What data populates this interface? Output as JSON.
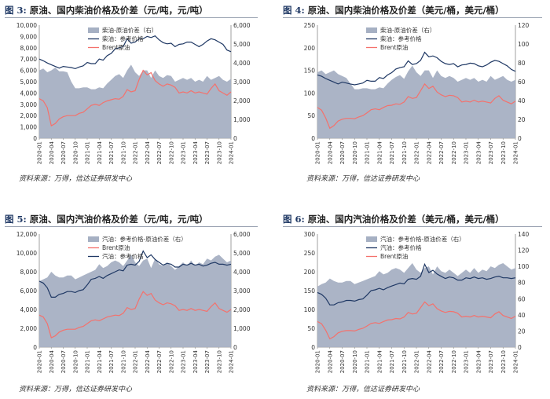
{
  "charts": [
    {
      "title_prefix": "图 3:",
      "title": "原油、国内柴油价格及价差（元/吨，元/吨）",
      "source": "资料来源：万得，信达证券研发中心",
      "chart_data": {
        "type": "area",
        "left_ticks": [
          "0",
          "1,000",
          "2,000",
          "3,000",
          "4,000",
          "5,000",
          "6,000",
          "7,000",
          "8,000",
          "9,000",
          "10,000"
        ],
        "left_max": 10000,
        "right_ticks": [
          "0",
          "1,000",
          "2,000",
          "3,000",
          "4,000",
          "5,000",
          "6,000"
        ],
        "right_max": 6000,
        "x_ticks": [
          "2020-01",
          "2020-04",
          "2020-07",
          "2020-10",
          "2021-01",
          "2021-04",
          "2021-07",
          "2021-10",
          "2022-01",
          "2022-04",
          "2022-07",
          "2022-10",
          "2023-01",
          "2023-04",
          "2023-07",
          "2023-10",
          "2024-01"
        ],
        "legend": [
          "柴油-原油价差（右）",
          "柴油：参考价格",
          "Brent原油"
        ],
        "series": [
          {
            "name": "柴油-原油价差（右）",
            "axis": "right",
            "color": "#a6b0c3",
            "values": [
              3600,
              3700,
              3500,
              3600,
              3750,
              3550,
              3550,
              3500,
              3000,
              2650,
              2650,
              2700,
              2700,
              2600,
              2600,
              2700,
              2650,
              2900,
              3100,
              3300,
              3400,
              3200,
              3600,
              3900,
              3500,
              3300,
              3600,
              3600,
              3200,
              3600,
              3300,
              3200,
              3350,
              3300,
              3000,
              3100,
              3200,
              3100,
              3200,
              3000,
              3100,
              3000,
              3300,
              3100,
              3200,
              3300,
              3100,
              3000,
              3150
            ]
          },
          {
            "name": "柴油：参考价格",
            "axis": "left",
            "color": "#1f3864",
            "values": [
              7000,
              6850,
              6650,
              6500,
              6350,
              6200,
              6350,
              6300,
              6250,
              6150,
              6300,
              6400,
              6700,
              6600,
              6600,
              7000,
              6900,
              7300,
              7500,
              7900,
              8000,
              8100,
              8800,
              8400,
              8500,
              8800,
              8800,
              9000,
              8900,
              9050,
              8700,
              8450,
              8350,
              8400,
              8100,
              8300,
              8350,
              8500,
              8500,
              8300,
              8100,
              8300,
              8600,
              8800,
              8700,
              8500,
              8300,
              7800,
              7650
            ]
          },
          {
            "name": "Brent原油",
            "axis": "left",
            "color": "#f4716c",
            "values": [
              3500,
              3300,
              2700,
              1100,
              1300,
              1700,
              1900,
              2000,
              2000,
              2000,
              2200,
              2300,
              2600,
              2900,
              3000,
              2900,
              3150,
              3300,
              3400,
              3500,
              3450,
              3700,
              4300,
              4100,
              4200,
              5200,
              6000,
              5600,
              5800,
              5100,
              4800,
              4600,
              4800,
              4700,
              4500,
              4000,
              4100,
              4000,
              4200,
              4000,
              4100,
              4000,
              3900,
              4400,
              4800,
              4200,
              4000,
              3800,
              4100
            ]
          }
        ]
      }
    },
    {
      "title_prefix": "图 4:",
      "title": "原油、国内柴油价格及价差（美元/桶，美元/桶）",
      "source": "资料来源：万得，信达证券研发中心",
      "chart_data": {
        "type": "area",
        "left_ticks": [
          "0",
          "50",
          "100",
          "150",
          "200",
          "250"
        ],
        "left_max": 250,
        "right_ticks": [
          "0",
          "20",
          "40",
          "60",
          "80",
          "100",
          "120"
        ],
        "right_max": 120,
        "x_ticks": [
          "2020-01",
          "2020-04",
          "2020-07",
          "2020-10",
          "2021-01",
          "2021-04",
          "2021-07",
          "2021-10",
          "2022-01",
          "2022-04",
          "2022-07",
          "2022-10",
          "2023-01",
          "2023-04",
          "2023-07",
          "2023-10",
          "2024-01"
        ],
        "legend": [
          "柴油-原油价差（右）",
          "柴油：参考价格",
          "Brent原油"
        ],
        "series": [
          {
            "name": "柴油-原油价差（右）",
            "axis": "right",
            "color": "#a6b0c3",
            "values": [
              70,
              72,
              68,
              70,
              72,
              68,
              66,
              64,
              58,
              52,
              52,
              53,
              53,
              52,
              52,
              54,
              53,
              58,
              62,
              65,
              67,
              63,
              71,
              77,
              70,
              66,
              72,
              72,
              64,
              72,
              66,
              64,
              66,
              64,
              60,
              62,
              64,
              62,
              64,
              60,
              62,
              60,
              66,
              62,
              64,
              66,
              62,
              60,
              62
            ]
          },
          {
            "name": "柴油：参考价格",
            "axis": "left",
            "color": "#1f3864",
            "values": [
              140,
              137,
              132,
              128,
              124,
              120,
              124,
              122,
              120,
              118,
              120,
              122,
              128,
              126,
              126,
              134,
              132,
              140,
              145,
              153,
              156,
              158,
              171,
              163,
              165,
              172,
              190,
              180,
              182,
              178,
              170,
              165,
              163,
              165,
              158,
              162,
              163,
              166,
              165,
              160,
              158,
              162,
              168,
              172,
              170,
              165,
              160,
              152,
              148
            ]
          },
          {
            "name": "Brent原油",
            "axis": "left",
            "color": "#f4716c",
            "values": [
              68,
              62,
              45,
              22,
              28,
              38,
              42,
              44,
              44,
              43,
              47,
              50,
              56,
              63,
              65,
              63,
              68,
              72,
              73,
              76,
              75,
              80,
              92,
              88,
              90,
              105,
              120,
              110,
              115,
              102,
              96,
              92,
              95,
              94,
              90,
              80,
              82,
              80,
              84,
              80,
              82,
              80,
              78,
              88,
              94,
              84,
              80,
              76,
              82
            ]
          }
        ]
      }
    },
    {
      "title_prefix": "图 5:",
      "title": "原油、国内汽油价格及价差（元/吨，元/吨）",
      "source": "资料来源：万得，信达证券研发中心",
      "chart_data": {
        "type": "area",
        "left_ticks": [
          "0",
          "2,000",
          "4,000",
          "6,000",
          "8,000",
          "10,000",
          "12,000"
        ],
        "left_max": 12000,
        "right_ticks": [
          "0",
          "1,000",
          "2,000",
          "3,000",
          "4,000",
          "5,000",
          "6,000"
        ],
        "right_max": 6000,
        "x_ticks": [
          "2020-01",
          "2020-04",
          "2020-07",
          "2020-10",
          "2021-01",
          "2021-04",
          "2021-07",
          "2021-10",
          "2022-01",
          "2022-04",
          "2022-07",
          "2022-10",
          "2023-01",
          "2023-04",
          "2023-07",
          "2023-10",
          "2024-01"
        ],
        "legend": [
          "汽油：参考价格-原油价差（右）",
          "Brent原油",
          "汽油：参考价格"
        ],
        "series": [
          {
            "name": "汽油：参考价格-原油价差（右）",
            "axis": "right",
            "color": "#a6b0c3",
            "values": [
              3500,
              3600,
              3700,
              4000,
              3800,
              3700,
              3700,
              3800,
              3800,
              3600,
              3700,
              3800,
              3900,
              4000,
              4100,
              4400,
              4200,
              4300,
              4500,
              4600,
              4500,
              4300,
              4600,
              4900,
              4500,
              4300,
              4600,
              4700,
              4200,
              4700,
              4400,
              4300,
              4500,
              4300,
              4100,
              4300,
              4500,
              4300,
              4600,
              4300,
              4500,
              4400,
              4700,
              4600,
              4800,
              4900,
              4700,
              4500,
              4600
            ]
          },
          {
            "name": "Brent原油",
            "axis": "left",
            "color": "#f4716c",
            "values": [
              3400,
              3200,
              2500,
              1000,
              1200,
              1600,
              1800,
              1900,
              1900,
              1900,
              2100,
              2200,
              2500,
              2800,
              2900,
              2800,
              3000,
              3200,
              3300,
              3400,
              3350,
              3600,
              4200,
              4000,
              4100,
              5100,
              5900,
              5500,
              5700,
              5000,
              4700,
              4500,
              4700,
              4600,
              4400,
              3900,
              4000,
              3900,
              4100,
              3900,
              4000,
              3900,
              3800,
              4300,
              4700,
              4100,
              3900,
              3700,
              4000
            ]
          },
          {
            "name": "汽油：参考价格",
            "axis": "left",
            "color": "#1f3864",
            "values": [
              7000,
              6800,
              6300,
              5300,
              5300,
              5600,
              5700,
              5900,
              5900,
              5800,
              6000,
              6100,
              6600,
              7200,
              7300,
              7500,
              7300,
              7600,
              7800,
              8000,
              8200,
              8100,
              8700,
              8800,
              8700,
              9100,
              10200,
              9500,
              9800,
              9300,
              9000,
              8700,
              8900,
              8800,
              8500,
              8500,
              8800,
              8700,
              8900,
              8700,
              8800,
              8600,
              8700,
              8900,
              9000,
              8800,
              8800,
              8700,
              8800
            ]
          }
        ]
      }
    },
    {
      "title_prefix": "图 6:",
      "title": "原油、国内汽油价格及价差（美元/桶，美元/桶）",
      "source": "资料来源：万得，信达证券研发中心",
      "chart_data": {
        "type": "area",
        "left_ticks": [
          "0",
          "50",
          "100",
          "150",
          "200",
          "250",
          "300"
        ],
        "left_max": 300,
        "right_ticks": [
          "0",
          "20",
          "40",
          "60",
          "80",
          "100",
          "120",
          "140"
        ],
        "right_max": 140,
        "x_ticks": [
          "2020-01",
          "2020-04",
          "2020-07",
          "2020-10",
          "2021-01",
          "2021-04",
          "2021-07",
          "2021-10",
          "2022-01",
          "2022-04",
          "2022-07",
          "2022-10",
          "2023-01",
          "2023-04",
          "2023-07",
          "2023-10",
          "2024-01"
        ],
        "legend": [
          "汽油：参考价格-原油价差（右）",
          "汽油：参考价格",
          "Brent原油"
        ],
        "series": [
          {
            "name": "汽油：参考价格-原油价差（右）",
            "axis": "right",
            "color": "#a6b0c3",
            "values": [
              75,
              78,
              80,
              85,
              82,
              80,
              80,
              82,
              82,
              78,
              80,
              82,
              84,
              86,
              88,
              94,
              90,
              92,
              96,
              98,
              96,
              92,
              98,
              104,
              96,
              92,
              98,
              100,
              90,
              100,
              94,
              92,
              96,
              92,
              88,
              92,
              96,
              92,
              98,
              92,
              96,
              94,
              100,
              98,
              102,
              104,
              100,
              96,
              98
            ]
          },
          {
            "name": "汽油：参考价格",
            "axis": "left",
            "color": "#1f3864",
            "values": [
              145,
              140,
              130,
              112,
              112,
              118,
              120,
              124,
              124,
              122,
              126,
              128,
              138,
              150,
              152,
              156,
              152,
              158,
              162,
              166,
              170,
              168,
              180,
              182,
              180,
              188,
              220,
              198,
              204,
              194,
              188,
              182,
              186,
              184,
              178,
              178,
              184,
              182,
              186,
              182,
              184,
              180,
              182,
              186,
              188,
              184,
              184,
              182,
              184
            ]
          },
          {
            "name": "Brent原油",
            "axis": "left",
            "color": "#f4716c",
            "values": [
              68,
              62,
              45,
              22,
              28,
              38,
              42,
              44,
              44,
              43,
              47,
              50,
              56,
              63,
              65,
              63,
              68,
              72,
              73,
              76,
              75,
              80,
              92,
              88,
              90,
              105,
              120,
              110,
              115,
              102,
              96,
              92,
              95,
              94,
              90,
              80,
              82,
              80,
              84,
              80,
              82,
              80,
              78,
              88,
              94,
              84,
              80,
              76,
              82
            ]
          }
        ]
      }
    }
  ]
}
